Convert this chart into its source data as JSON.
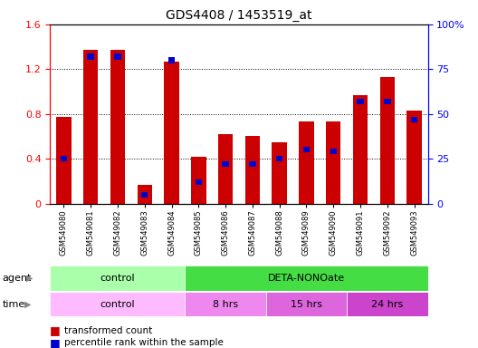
{
  "title": "GDS4408 / 1453519_at",
  "samples": [
    "GSM549080",
    "GSM549081",
    "GSM549082",
    "GSM549083",
    "GSM549084",
    "GSM549085",
    "GSM549086",
    "GSM549087",
    "GSM549088",
    "GSM549089",
    "GSM549090",
    "GSM549091",
    "GSM549092",
    "GSM549093"
  ],
  "red_values": [
    0.77,
    1.37,
    1.37,
    0.17,
    1.27,
    0.42,
    0.62,
    0.6,
    0.55,
    0.73,
    0.73,
    0.97,
    1.13,
    0.83
  ],
  "blue_values": [
    25,
    82,
    82,
    5,
    80,
    12,
    22,
    22,
    25,
    30,
    29,
    57,
    57,
    47
  ],
  "red_color": "#cc0000",
  "blue_color": "#0000cc",
  "bar_width": 0.55,
  "ylim_left": [
    0,
    1.6
  ],
  "ylim_right": [
    0,
    100
  ],
  "yticks_left": [
    0,
    0.4,
    0.8,
    1.2,
    1.6
  ],
  "yticks_right": [
    0,
    25,
    50,
    75,
    100
  ],
  "ytick_labels_right": [
    "0",
    "25",
    "50",
    "75",
    "100%"
  ],
  "agent_groups": [
    {
      "label": "control",
      "start": 0,
      "end": 5,
      "color": "#aaffaa"
    },
    {
      "label": "DETA-NONOate",
      "start": 5,
      "end": 14,
      "color": "#44dd44"
    }
  ],
  "time_groups": [
    {
      "label": "control",
      "start": 0,
      "end": 5,
      "color": "#ffbbff"
    },
    {
      "label": "8 hrs",
      "start": 5,
      "end": 8,
      "color": "#ee88ee"
    },
    {
      "label": "15 hrs",
      "start": 8,
      "end": 11,
      "color": "#dd66dd"
    },
    {
      "label": "24 hrs",
      "start": 11,
      "end": 14,
      "color": "#cc44cc"
    }
  ],
  "legend_red_label": "transformed count",
  "legend_blue_label": "percentile rank within the sample",
  "fig_bg": "#ffffff",
  "plot_bg": "#ffffff",
  "tick_bg": "#dddddd"
}
